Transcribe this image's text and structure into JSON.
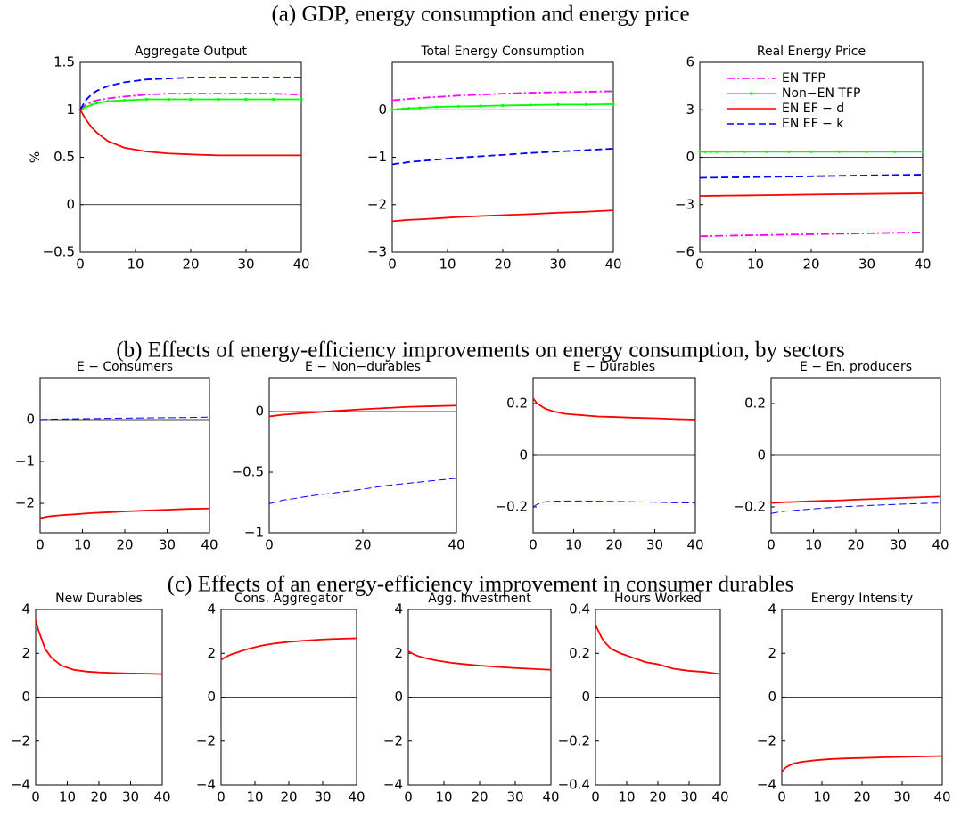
{
  "headings": [
    "(a) GDP, energy consumption and energy price",
    "(b) Effects of energy-efficiency improvements on energy consumption, by sectors",
    "(c) Effects of an energy-efficiency improvement in consumer durables"
  ],
  "chart_data": [
    {
      "type": "line",
      "title": "Aggregate Output",
      "ylabel": "%",
      "x": [
        0,
        1,
        2,
        3,
        5,
        8,
        12,
        16,
        20,
        25,
        30,
        35,
        40
      ],
      "xlim": [
        0,
        40
      ],
      "xticks": [
        0,
        10,
        20,
        30,
        40
      ],
      "ylim": [
        -0.5,
        1.5
      ],
      "yticks": [
        {
          "value": -0.5,
          "label": "−0.5"
        },
        0,
        0.5,
        1,
        1.5
      ],
      "hline": 0,
      "series": [
        {
          "color": "#ff00ff",
          "style": "dashdot",
          "values": [
            1.0,
            1.05,
            1.08,
            1.1,
            1.12,
            1.14,
            1.16,
            1.17,
            1.17,
            1.17,
            1.17,
            1.17,
            1.16
          ]
        },
        {
          "color": "#00ff00",
          "style": "solid",
          "marker": "dot",
          "values": [
            1.0,
            1.03,
            1.05,
            1.07,
            1.09,
            1.1,
            1.11,
            1.11,
            1.11,
            1.11,
            1.11,
            1.11,
            1.11
          ]
        },
        {
          "color": "#ff0000",
          "style": "solid",
          "values": [
            1.0,
            0.9,
            0.82,
            0.76,
            0.67,
            0.6,
            0.56,
            0.54,
            0.53,
            0.52,
            0.52,
            0.52,
            0.52
          ]
        },
        {
          "color": "#0000ff",
          "style": "dashed",
          "values": [
            1.0,
            1.1,
            1.16,
            1.2,
            1.25,
            1.29,
            1.32,
            1.33,
            1.34,
            1.34,
            1.34,
            1.34,
            1.34
          ]
        }
      ]
    },
    {
      "type": "line",
      "title": "Total Energy Consumption",
      "x": [
        0,
        1,
        2,
        3,
        5,
        8,
        12,
        16,
        20,
        25,
        30,
        35,
        40
      ],
      "xlim": [
        0,
        40
      ],
      "xticks": [
        0,
        10,
        20,
        30,
        40
      ],
      "ylim": [
        -3,
        1
      ],
      "yticks": [
        {
          "value": -3,
          "label": "−3"
        },
        {
          "value": -2,
          "label": "−2"
        },
        {
          "value": -1,
          "label": "−1"
        },
        0
      ],
      "hline": 0,
      "series": [
        {
          "color": "#ff00ff",
          "style": "dashdot",
          "values": [
            0.2,
            0.21,
            0.22,
            0.23,
            0.25,
            0.27,
            0.3,
            0.32,
            0.34,
            0.36,
            0.37,
            0.38,
            0.39
          ]
        },
        {
          "color": "#00ff00",
          "style": "solid",
          "marker": "dot",
          "values": [
            0,
            0.01,
            0.02,
            0.03,
            0.04,
            0.06,
            0.07,
            0.08,
            0.09,
            0.1,
            0.11,
            0.11,
            0.12
          ]
        },
        {
          "color": "#ff0000",
          "style": "solid",
          "values": [
            -2.35,
            -2.34,
            -2.33,
            -2.32,
            -2.31,
            -2.29,
            -2.26,
            -2.24,
            -2.22,
            -2.2,
            -2.17,
            -2.15,
            -2.12
          ]
        },
        {
          "color": "#0000ff",
          "style": "dashed",
          "values": [
            -1.15,
            -1.13,
            -1.12,
            -1.1,
            -1.08,
            -1.05,
            -1.01,
            -0.98,
            -0.95,
            -0.91,
            -0.88,
            -0.85,
            -0.82
          ]
        }
      ]
    },
    {
      "type": "line",
      "title": "Real Energy Price",
      "legend": "upper right",
      "x": [
        0,
        1,
        2,
        3,
        5,
        8,
        12,
        16,
        20,
        25,
        30,
        35,
        40
      ],
      "xlim": [
        0,
        40
      ],
      "xticks": [
        0,
        10,
        20,
        30,
        40
      ],
      "ylim": [
        -6,
        6
      ],
      "yticks": [
        {
          "value": -6,
          "label": "−6"
        },
        {
          "value": -3,
          "label": "−3"
        },
        0,
        3,
        6
      ],
      "hline": 0,
      "series": [
        {
          "name": "EN TFP",
          "color": "#ff00ff",
          "style": "dashdot",
          "values": [
            -5.0,
            -4.99,
            -4.98,
            -4.97,
            -4.96,
            -4.94,
            -4.92,
            -4.89,
            -4.87,
            -4.84,
            -4.81,
            -4.78,
            -4.75
          ]
        },
        {
          "name": "Non−EN TFP",
          "color": "#00ff00",
          "style": "solid",
          "marker": "dot",
          "values": [
            0.35,
            0.35,
            0.35,
            0.35,
            0.35,
            0.35,
            0.35,
            0.35,
            0.35,
            0.35,
            0.35,
            0.35,
            0.35
          ]
        },
        {
          "name": "EN EF − d",
          "color": "#ff0000",
          "style": "solid",
          "values": [
            -2.45,
            -2.45,
            -2.44,
            -2.44,
            -2.43,
            -2.42,
            -2.4,
            -2.38,
            -2.36,
            -2.34,
            -2.32,
            -2.3,
            -2.28
          ]
        },
        {
          "name": "EN EF − k",
          "color": "#0000ff",
          "style": "dashed",
          "values": [
            -1.3,
            -1.29,
            -1.29,
            -1.28,
            -1.27,
            -1.26,
            -1.24,
            -1.22,
            -1.2,
            -1.17,
            -1.15,
            -1.12,
            -1.1
          ]
        }
      ]
    },
    {
      "type": "line",
      "title": "E − Consumers",
      "x": [
        0,
        1,
        2,
        3,
        5,
        8,
        12,
        16,
        20,
        25,
        30,
        35,
        40
      ],
      "xlim": [
        0,
        40
      ],
      "xticks": [
        0,
        10,
        20,
        30,
        40
      ],
      "ylim": [
        -2.7,
        1
      ],
      "yticks": [
        {
          "value": -2,
          "label": "−2"
        },
        {
          "value": -1,
          "label": "−1"
        },
        0
      ],
      "hline": 0,
      "series": [
        {
          "color": "#ff0000",
          "style": "solid",
          "values": [
            -2.35,
            -2.33,
            -2.31,
            -2.3,
            -2.28,
            -2.26,
            -2.23,
            -2.21,
            -2.19,
            -2.17,
            -2.15,
            -2.13,
            -2.12
          ]
        },
        {
          "color": "#0000ff",
          "style": "dashed",
          "values": [
            0,
            0.005,
            0.01,
            0.012,
            0.015,
            0.02,
            0.025,
            0.03,
            0.035,
            0.04,
            0.045,
            0.05,
            0.06
          ]
        }
      ]
    },
    {
      "type": "line",
      "title": "E − Non−durables",
      "x": [
        0,
        1,
        2,
        3,
        5,
        8,
        12,
        16,
        20,
        25,
        30,
        35,
        40
      ],
      "xlim": [
        0,
        40
      ],
      "xticks": [
        0,
        20,
        40
      ],
      "ylim": [
        -1,
        0.28
      ],
      "yticks": [
        {
          "value": -1,
          "label": "−1"
        },
        {
          "value": -0.5,
          "label": "−0.5"
        },
        0
      ],
      "hline": 0,
      "series": [
        {
          "color": "#ff0000",
          "style": "solid",
          "values": [
            -0.04,
            -0.035,
            -0.03,
            -0.025,
            -0.02,
            -0.01,
            0,
            0.01,
            0.02,
            0.03,
            0.04,
            0.045,
            0.05
          ]
        },
        {
          "color": "#0000ff",
          "style": "dashed",
          "values": [
            -0.76,
            -0.75,
            -0.74,
            -0.73,
            -0.72,
            -0.7,
            -0.68,
            -0.66,
            -0.64,
            -0.61,
            -0.59,
            -0.57,
            -0.55
          ]
        }
      ]
    },
    {
      "type": "line",
      "title": "E − Durables",
      "x": [
        0,
        1,
        2,
        3,
        5,
        8,
        12,
        16,
        20,
        25,
        30,
        35,
        40
      ],
      "xlim": [
        0,
        40
      ],
      "xticks": [
        0,
        10,
        20,
        30,
        40
      ],
      "ylim": [
        -0.3,
        0.3
      ],
      "yticks": [
        {
          "value": -0.2,
          "label": "−0.2"
        },
        0,
        0.2
      ],
      "hline": 0,
      "series": [
        {
          "color": "#ff0000",
          "style": "solid",
          "values": [
            0.22,
            0.2,
            0.19,
            0.18,
            0.17,
            0.16,
            0.155,
            0.15,
            0.148,
            0.145,
            0.143,
            0.14,
            0.138
          ]
        },
        {
          "color": "#0000ff",
          "style": "dashed",
          "values": [
            -0.2,
            -0.19,
            -0.185,
            -0.18,
            -0.178,
            -0.177,
            -0.177,
            -0.178,
            -0.179,
            -0.18,
            -0.182,
            -0.184,
            -0.185
          ]
        }
      ]
    },
    {
      "type": "line",
      "title": "E − En. producers",
      "x": [
        0,
        1,
        2,
        3,
        5,
        8,
        12,
        16,
        20,
        25,
        30,
        35,
        40
      ],
      "xlim": [
        0,
        40
      ],
      "xticks": [
        0,
        10,
        20,
        30,
        40
      ],
      "ylim": [
        -0.3,
        0.3
      ],
      "yticks": [
        {
          "value": -0.2,
          "label": "−0.2"
        },
        0,
        0.2
      ],
      "hline": 0,
      "series": [
        {
          "color": "#ff0000",
          "style": "solid",
          "values": [
            -0.185,
            -0.184,
            -0.183,
            -0.182,
            -0.181,
            -0.179,
            -0.177,
            -0.175,
            -0.172,
            -0.169,
            -0.166,
            -0.163,
            -0.16
          ]
        },
        {
          "color": "#0000ff",
          "style": "dashed",
          "values": [
            -0.225,
            -0.222,
            -0.219,
            -0.217,
            -0.214,
            -0.21,
            -0.205,
            -0.2,
            -0.197,
            -0.193,
            -0.19,
            -0.187,
            -0.185
          ]
        }
      ]
    },
    {
      "type": "line",
      "title": "New Durables",
      "x": [
        0,
        1,
        2,
        3,
        5,
        8,
        12,
        16,
        20,
        25,
        30,
        35,
        40
      ],
      "xlim": [
        0,
        40
      ],
      "xticks": [
        0,
        10,
        20,
        30,
        40
      ],
      "ylim": [
        -4,
        4
      ],
      "yticks": [
        {
          "value": -4,
          "label": "−4"
        },
        {
          "value": -2,
          "label": "−2"
        },
        0,
        2,
        4
      ],
      "hline": 0,
      "series": [
        {
          "color": "#ff0000",
          "style": "solid",
          "values": [
            3.5,
            3.0,
            2.6,
            2.2,
            1.8,
            1.45,
            1.25,
            1.17,
            1.13,
            1.1,
            1.08,
            1.07,
            1.05
          ]
        }
      ]
    },
    {
      "type": "line",
      "title": "Cons. Aggregator",
      "x": [
        0,
        1,
        2,
        3,
        5,
        8,
        12,
        16,
        20,
        25,
        30,
        35,
        40
      ],
      "xlim": [
        0,
        40
      ],
      "xticks": [
        0,
        10,
        20,
        30,
        40
      ],
      "ylim": [
        -4,
        4
      ],
      "yticks": [
        {
          "value": -4,
          "label": "−4"
        },
        {
          "value": -2,
          "label": "−2"
        },
        0,
        2,
        4
      ],
      "hline": 0,
      "series": [
        {
          "color": "#ff0000",
          "style": "solid",
          "values": [
            1.7,
            1.8,
            1.88,
            1.95,
            2.05,
            2.2,
            2.35,
            2.45,
            2.52,
            2.58,
            2.63,
            2.66,
            2.68
          ]
        }
      ]
    },
    {
      "type": "line",
      "title": "Agg. Investment",
      "x": [
        0,
        1,
        2,
        3,
        5,
        8,
        12,
        16,
        20,
        25,
        30,
        35,
        40
      ],
      "xlim": [
        0,
        40
      ],
      "xticks": [
        0,
        10,
        20,
        30,
        40
      ],
      "ylim": [
        -4,
        4
      ],
      "yticks": [
        {
          "value": -4,
          "label": "−4"
        },
        {
          "value": -2,
          "label": "−2"
        },
        0,
        2,
        4
      ],
      "hline": 0,
      "series": [
        {
          "color": "#ff0000",
          "style": "solid",
          "values": [
            2.1,
            2.0,
            1.92,
            1.86,
            1.77,
            1.67,
            1.57,
            1.5,
            1.44,
            1.38,
            1.33,
            1.29,
            1.25
          ]
        }
      ]
    },
    {
      "type": "line",
      "title": "Hours Worked",
      "x": [
        0,
        1,
        2,
        3,
        5,
        8,
        12,
        16,
        20,
        25,
        30,
        35,
        40
      ],
      "xlim": [
        0,
        40
      ],
      "xticks": [
        0,
        10,
        20,
        30,
        40
      ],
      "ylim": [
        -0.4,
        0.4
      ],
      "yticks": [
        {
          "value": -0.4,
          "label": "−0.4"
        },
        {
          "value": -0.2,
          "label": "−0.2"
        },
        0,
        0.2,
        0.4
      ],
      "hline": 0,
      "series": [
        {
          "color": "#ff0000",
          "style": "solid",
          "values": [
            0.33,
            0.3,
            0.27,
            0.25,
            0.22,
            0.2,
            0.18,
            0.16,
            0.15,
            0.13,
            0.12,
            0.115,
            0.105
          ]
        }
      ]
    },
    {
      "type": "line",
      "title": "Energy Intensity",
      "x": [
        0,
        1,
        2,
        3,
        5,
        8,
        12,
        16,
        20,
        25,
        30,
        35,
        40
      ],
      "xlim": [
        0,
        40
      ],
      "xticks": [
        0,
        10,
        20,
        30,
        40
      ],
      "ylim": [
        -4,
        4
      ],
      "yticks": [
        {
          "value": -4,
          "label": "−4"
        },
        {
          "value": -2,
          "label": "−2"
        },
        0,
        2,
        4
      ],
      "hline": 0,
      "series": [
        {
          "color": "#ff0000",
          "style": "solid",
          "values": [
            -3.4,
            -3.2,
            -3.1,
            -3.02,
            -2.95,
            -2.88,
            -2.82,
            -2.79,
            -2.77,
            -2.74,
            -2.72,
            -2.7,
            -2.68
          ]
        }
      ]
    }
  ]
}
